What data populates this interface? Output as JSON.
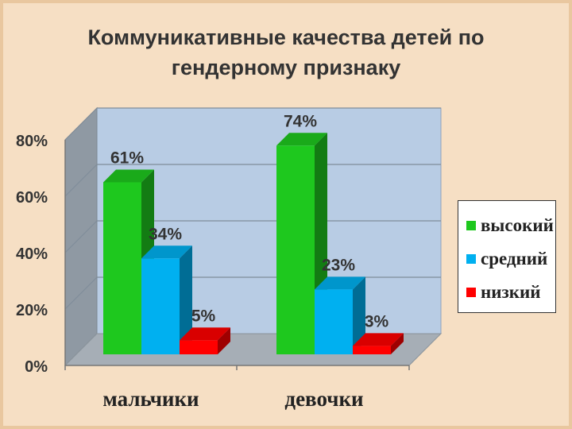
{
  "chart_data": {
    "type": "bar",
    "title": "Коммуникативные качества детей по гендерному признаку",
    "title_lines": [
      "Коммуникативные качества  детей по",
      "гендерному признаку"
    ],
    "categories": [
      "мальчики",
      "девочки"
    ],
    "series": [
      {
        "name": "высокий",
        "values": [
          61,
          74
        ],
        "labels": [
          "61%",
          "74%"
        ],
        "color": "#1ec81e"
      },
      {
        "name": "средний",
        "values": [
          34,
          23
        ],
        "labels": [
          "34%",
          "23%"
        ],
        "color": "#00b0f0"
      },
      {
        "name": "низкий",
        "values": [
          5,
          3
        ],
        "labels": [
          "5%",
          "3%"
        ],
        "color": "#ff0000"
      }
    ],
    "yticks": [
      "0%",
      "20%",
      "40%",
      "60%",
      "80%"
    ],
    "ylim": [
      0,
      80
    ],
    "grid": true,
    "three_d": true,
    "legend_position": "right"
  }
}
